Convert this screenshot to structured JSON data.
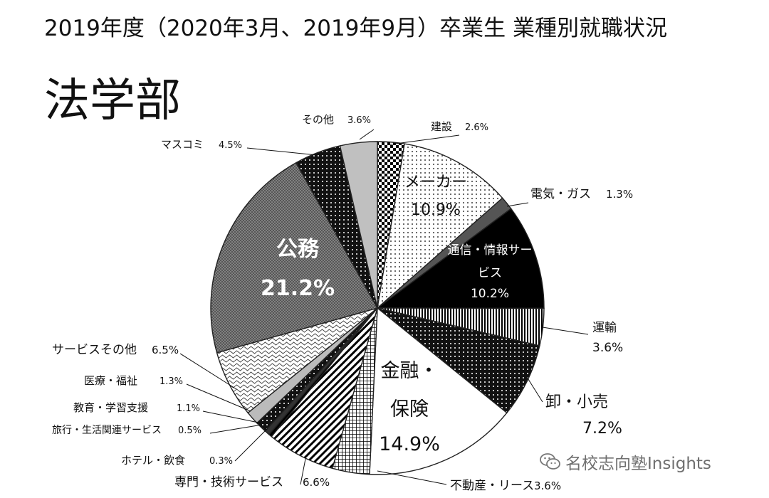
{
  "header": {
    "title": "2019年度（2020年3月、2019年9月）卒業生 業種別就職状況"
  },
  "watermark": {
    "text": "名校志向塾Insights"
  },
  "chart_data": {
    "type": "pie",
    "title": "法学部",
    "unit": "%",
    "slices": [
      {
        "label": "建設",
        "value": 2.6,
        "label_text": "2.6%",
        "pattern": "checker",
        "color": "#000000"
      },
      {
        "label": "メーカー",
        "value": 10.9,
        "label_text": "10.9%",
        "pattern": "dots",
        "color": "#ffffff"
      },
      {
        "label": "電気・ガス",
        "value": 1.3,
        "label_text": "1.3%",
        "pattern": "solid",
        "color": "#555555"
      },
      {
        "label": "通信・情報サービス",
        "value": 10.2,
        "label_text": "10.2%",
        "pattern": "solid",
        "color": "#000000"
      },
      {
        "label": "運輸",
        "value": 3.6,
        "label_text": "3.6%",
        "pattern": "vstripes",
        "color": "#000000"
      },
      {
        "label": "卸・小売",
        "value": 7.2,
        "label_text": "7.2%",
        "pattern": "darkdots",
        "color": "#000000"
      },
      {
        "label": "金融・保険",
        "value": 14.9,
        "label_text": "14.9%",
        "pattern": "solid",
        "color": "#ffffff"
      },
      {
        "label": "不動産・リース",
        "value": 3.6,
        "label_text": "3.6%",
        "pattern": "grid",
        "color": "#444444"
      },
      {
        "label": "専門・技術サービス",
        "value": 6.6,
        "label_text": "6.6%",
        "pattern": "diag",
        "color": "#000000"
      },
      {
        "label": "ホテル・飲食",
        "value": 0.3,
        "label_text": "0.3%",
        "pattern": "solid",
        "color": "#000000"
      },
      {
        "label": "旅行・生活関連サービス",
        "value": 0.5,
        "label_text": "0.5%",
        "pattern": "solid",
        "color": "#333333"
      },
      {
        "label": "教育・学習支援",
        "value": 1.1,
        "label_text": "1.1%",
        "pattern": "darkdots",
        "color": "#000000"
      },
      {
        "label": "医療・福祉",
        "value": 1.3,
        "label_text": "1.3%",
        "pattern": "solid",
        "color": "#bbbbbb"
      },
      {
        "label": "サービスその他",
        "value": 6.5,
        "label_text": "6.5%",
        "pattern": "wave",
        "color": "#ffffff"
      },
      {
        "label": "公務",
        "value": 21.2,
        "label_text": "21.2%",
        "pattern": "hatch",
        "color": "#777777"
      },
      {
        "label": "マスコミ",
        "value": 4.5,
        "label_text": "4.5%",
        "pattern": "darkdots",
        "color": "#1a1a1a"
      },
      {
        "label": "その他",
        "value": 3.6,
        "label_text": "3.6%",
        "pattern": "solid",
        "color": "#c0c0c0"
      }
    ]
  }
}
